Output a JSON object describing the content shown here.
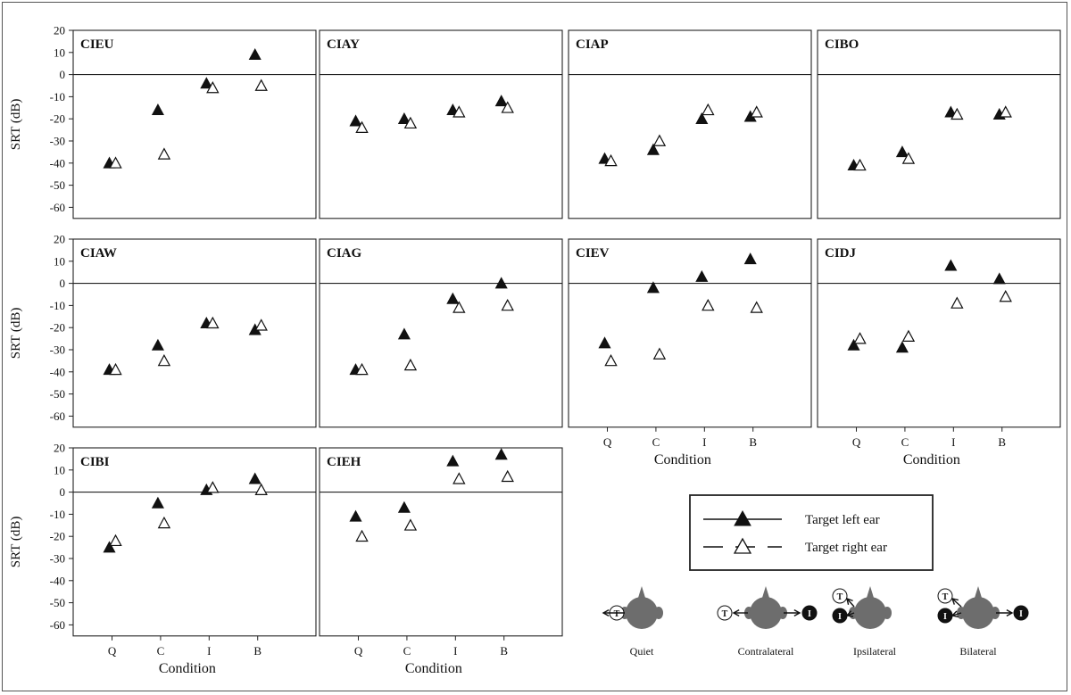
{
  "chart_data": {
    "type": "scatter",
    "ylabel": "SRT (dB)",
    "xlabel": "Condition",
    "categories": [
      "Q",
      "C",
      "I",
      "B"
    ],
    "ylim": [
      -65,
      20
    ],
    "yticks": [
      20,
      10,
      0,
      -10,
      -20,
      -30,
      -40,
      -50,
      -60
    ],
    "series_names": [
      "Target left ear",
      "Target right ear"
    ],
    "series_markers": [
      "filled-triangle",
      "open-triangle"
    ],
    "panels": [
      {
        "name": "CIEU",
        "left": [
          -40,
          -16,
          -4,
          9
        ],
        "right": [
          -40,
          -36,
          -6,
          -5
        ]
      },
      {
        "name": "CIAY",
        "left": [
          -21,
          -20,
          -16,
          -12
        ],
        "right": [
          -24,
          -22,
          -17,
          -15
        ]
      },
      {
        "name": "CIAP",
        "left": [
          -38,
          -34,
          -20,
          -19
        ],
        "right": [
          -39,
          -30,
          -16,
          -17
        ]
      },
      {
        "name": "CIBO",
        "left": [
          -41,
          -35,
          -17,
          -18
        ],
        "right": [
          -41,
          -38,
          -18,
          -17
        ]
      },
      {
        "name": "CIAW",
        "left": [
          -39,
          -28,
          -18,
          -21
        ],
        "right": [
          -39,
          -35,
          -18,
          -19
        ]
      },
      {
        "name": "CIAG",
        "left": [
          -39,
          -23,
          -7,
          0
        ],
        "right": [
          -39,
          -37,
          -11,
          -10
        ]
      },
      {
        "name": "CIEV",
        "left": [
          -27,
          -2,
          3,
          11
        ],
        "right": [
          -35,
          -32,
          -10,
          -11
        ]
      },
      {
        "name": "CIDJ",
        "left": [
          -28,
          -29,
          8,
          2
        ],
        "right": [
          -25,
          -24,
          -9,
          -6
        ]
      },
      {
        "name": "CIBI",
        "left": [
          -25,
          -5,
          1,
          6
        ],
        "right": [
          -22,
          -14,
          2,
          1
        ]
      },
      {
        "name": "CIEH",
        "left": [
          -11,
          -7,
          14,
          17
        ],
        "right": [
          -20,
          -15,
          6,
          7
        ]
      }
    ]
  },
  "diagram": {
    "labels": [
      "Quiet",
      "Contralateral",
      "Ipsilateral",
      "Bilateral"
    ],
    "target_letter": "T",
    "interferer_letter": "I"
  }
}
